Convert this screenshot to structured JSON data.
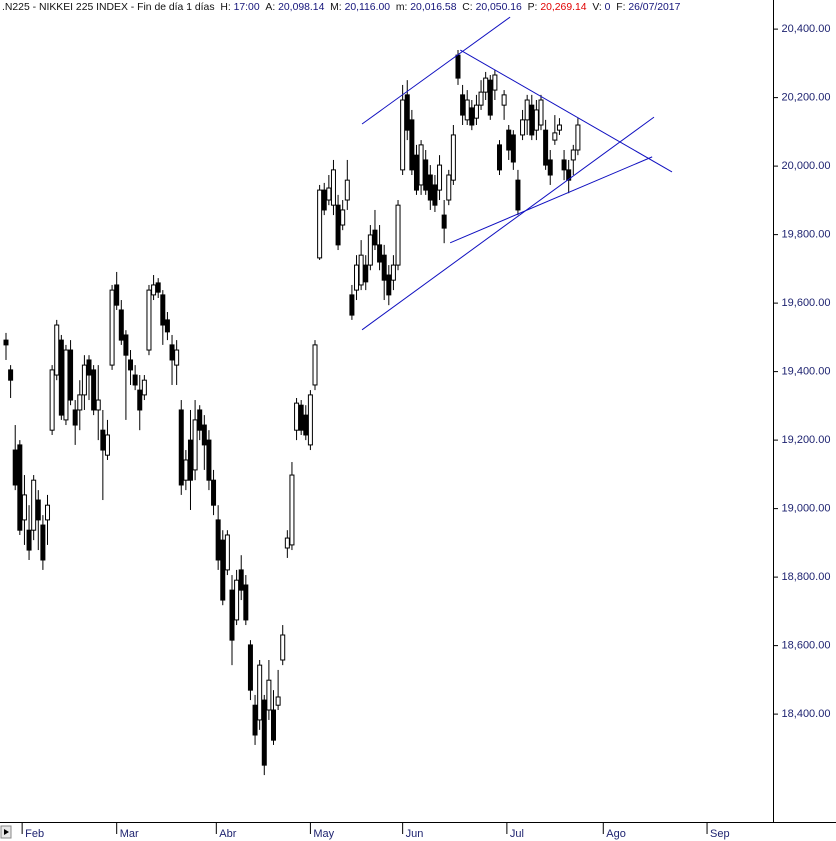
{
  "chart_data": {
    "type": "candlestick",
    "header": {
      "title": ".N225 - NIKKEI 225 INDEX - Fin de día 1 días",
      "fields": [
        {
          "label": "H:",
          "value": "17:00"
        },
        {
          "label": "A:",
          "value": "20,098.14"
        },
        {
          "label": "M:",
          "value": "20,116.00"
        },
        {
          "label": "m:",
          "value": "20,016.58"
        },
        {
          "label": "C:",
          "value": "20,050.16"
        },
        {
          "label": "P:",
          "value": "20,269.14",
          "color": "#e00000"
        },
        {
          "label": "V:",
          "value": "0"
        },
        {
          "label": "F:",
          "value": "26/07/2017"
        }
      ]
    },
    "x": [
      0,
      1,
      2,
      3,
      4,
      5,
      6,
      7,
      8,
      9,
      10,
      11,
      12,
      13,
      14,
      15,
      16,
      17,
      18,
      19,
      20,
      21,
      22,
      23,
      24,
      25,
      26,
      27,
      28,
      29,
      30,
      31,
      32,
      33,
      34,
      35,
      36,
      37,
      38,
      39,
      40,
      41,
      42,
      43,
      44,
      45,
      46,
      47,
      48,
      49,
      50,
      51,
      52,
      53,
      54,
      55,
      56,
      57,
      58,
      59,
      60,
      61,
      62,
      63,
      64,
      65,
      66,
      67,
      68,
      69,
      70,
      71,
      72,
      73,
      74,
      75,
      76,
      77,
      78,
      79,
      80,
      81,
      82,
      83,
      84,
      85,
      86,
      87,
      88,
      89,
      90,
      91,
      92,
      93,
      94,
      95,
      96,
      97,
      98,
      99,
      100,
      101,
      102,
      103,
      104,
      105,
      106,
      107,
      108,
      109,
      110,
      111,
      112,
      113,
      114,
      115,
      116,
      117,
      118,
      119,
      120,
      121,
      122,
      123,
      124
    ],
    "open": [
      19492,
      19405,
      19171,
      19186,
      18967,
      18937,
      18937,
      19025,
      18952,
      18967,
      19229,
      19390,
      19492,
      19259,
      19463,
      19288,
      19288,
      19332,
      19434,
      19405,
      19288,
      19229,
      19156,
      19419,
      19653,
      19580,
      19507,
      19434,
      19390,
      19346,
      19332,
      19463,
      19624,
      19659,
      19624,
      19551,
      19478,
      19419,
      19288,
      19083,
      19200,
      19113,
      19288,
      19244,
      19200,
      19083,
      18967,
      18908,
      18821,
      18762,
      18675,
      18821,
      18777,
      18602,
      18426,
      18383,
      18441,
      18412,
      18412,
      18426,
      18558,
      18885,
      18894,
      19229,
      19302,
      19273,
      19186,
      19361,
      19732,
      19930,
      19901,
      19886,
      19886,
      19828,
      19901,
      19624,
      19638,
      19653,
      19711,
      19711,
      19813,
      19770,
      19740,
      19682,
      19667,
      19711,
      19989,
      20208,
      20135,
      20032,
      19945,
      20018,
      19974,
      19945,
      19930,
      19857,
      19901,
      19959,
      20324,
      20208,
      20135,
      20170,
      20140,
      20178,
      20216,
      20251,
      20222,
      20062,
      20178,
      20105,
      20091,
      19959,
      20091,
      20135,
      20178,
      20105,
      20120,
      20105,
      20018,
      20076,
      20105,
      20018,
      19989,
      20018,
      20047
    ],
    "high": [
      19513,
      19419,
      19244,
      19200,
      19098,
      19010,
      19098,
      19054,
      18981,
      19040,
      19419,
      19551,
      19507,
      19478,
      19492,
      19317,
      19375,
      19448,
      19448,
      19419,
      19419,
      19288,
      19259,
      19653,
      19691,
      19609,
      19521,
      19463,
      19419,
      19390,
      19390,
      19653,
      19682,
      19673,
      19638,
      19574,
      19507,
      19492,
      19317,
      19171,
      19288,
      19317,
      19302,
      19273,
      19229,
      19113,
      19010,
      18937,
      18937,
      18806,
      18821,
      18864,
      18806,
      18616,
      18456,
      18558,
      18456,
      18558,
      18470,
      18529,
      18660,
      18937,
      19136,
      19323,
      19317,
      19302,
      19346,
      19492,
      19945,
      19951,
      19974,
      20018,
      19916,
      19901,
      20018,
      19653,
      19740,
      19784,
      19740,
      19828,
      19872,
      19828,
      19770,
      19711,
      19740,
      19901,
      20237,
      20251,
      20164,
      20062,
      20076,
      20047,
      20003,
      19974,
      20032,
      19901,
      19989,
      20120,
      20339,
      20237,
      20222,
      20193,
      20208,
      20251,
      20275,
      20266,
      20281,
      20076,
      20222,
      20120,
      20105,
      19989,
      20164,
      20208,
      20208,
      20193,
      20208,
      20135,
      20047,
      20149,
      20140,
      20047,
      20018,
      20062,
      20140
    ],
    "low": [
      19434,
      19323,
      19054,
      18923,
      18894,
      18850,
      18908,
      18879,
      18821,
      18894,
      19215,
      19375,
      19259,
      19244,
      19302,
      19186,
      19229,
      19288,
      19317,
      19273,
      19200,
      19025,
      19142,
      19405,
      19580,
      19478,
      19259,
      19361,
      19346,
      19229,
      19317,
      19448,
      19609,
      19615,
      19478,
      19492,
      19361,
      19361,
      19040,
      19054,
      18996,
      19083,
      19200,
      19113,
      19054,
      18981,
      18821,
      18718,
      18806,
      18543,
      18660,
      18733,
      18660,
      18441,
      18310,
      18354,
      18222,
      18383,
      18310,
      18412,
      18543,
      18856,
      18879,
      19200,
      19215,
      19200,
      19171,
      19346,
      19726,
      19857,
      19886,
      19857,
      19755,
      19813,
      19872,
      19551,
      19609,
      19638,
      19638,
      19696,
      19755,
      19696,
      19609,
      19594,
      19638,
      19696,
      19974,
      20076,
      19974,
      19916,
      19916,
      19916,
      19872,
      19866,
      19901,
      19775,
      19886,
      19945,
      20237,
      20120,
      20120,
      20105,
      20120,
      20164,
      20193,
      20135,
      20193,
      19974,
      20135,
      20018,
      19989,
      19857,
      20076,
      20091,
      20076,
      20076,
      20105,
      19989,
      19945,
      20062,
      20091,
      19959,
      19921,
      19974,
      20032
    ],
    "close": [
      19478,
      19375,
      19069,
      18937,
      19040,
      18879,
      19083,
      18967,
      18850,
      19010,
      19405,
      19536,
      19273,
      19463,
      19317,
      19244,
      19332,
      19419,
      19390,
      19288,
      19317,
      19171,
      19215,
      19638,
      19594,
      19492,
      19448,
      19405,
      19361,
      19288,
      19375,
      19638,
      19653,
      19632,
      19536,
      19516,
      19434,
      19463,
      19069,
      19142,
      19083,
      19259,
      19229,
      19186,
      19083,
      19010,
      18850,
      18733,
      18923,
      18616,
      18791,
      18762,
      18675,
      18470,
      18339,
      18543,
      18251,
      18499,
      18324,
      18450,
      18631,
      18914,
      19098,
      19308,
      19229,
      19215,
      19332,
      19478,
      19930,
      19872,
      19936,
      19989,
      19770,
      19872,
      19959,
      19565,
      19711,
      19740,
      19662,
      19799,
      19770,
      19720,
      19667,
      19624,
      19711,
      19886,
      20193,
      20105,
      19989,
      19930,
      20062,
      19930,
      19901,
      19886,
      20003,
      19819,
      19974,
      20091,
      20257,
      20149,
      20193,
      20120,
      20178,
      20216,
      20257,
      20149,
      20266,
      19989,
      20208,
      20047,
      20012,
      19872,
      20135,
      20193,
      20091,
      20164,
      20193,
      20003,
      19974,
      20097,
      20120,
      19989,
      19959,
      20047,
      20120
    ],
    "up_color": "#ffffff",
    "down_color": "#000000",
    "xlim": [
      -1.3,
      166.3
    ],
    "xticks": [
      {
        "value": 3.5,
        "label": "Feb"
      },
      {
        "value": 24,
        "label": "Mar"
      },
      {
        "value": 45.6,
        "label": "Abr"
      },
      {
        "value": 66,
        "label": "May"
      },
      {
        "value": 86,
        "label": "Jun"
      },
      {
        "value": 108.6,
        "label": "Jul"
      },
      {
        "value": 129.5,
        "label": "Ago"
      },
      {
        "value": 152,
        "label": "Sep"
      }
    ],
    "ylim": [
      18085,
      20485
    ],
    "yticks": [
      {
        "value": 18400,
        "label": "18,400.00"
      },
      {
        "value": 18600,
        "label": "18,600.00"
      },
      {
        "value": 18800,
        "label": "18,800.00"
      },
      {
        "value": 19000,
        "label": "19,000.00"
      },
      {
        "value": 19200,
        "label": "19,200.00"
      },
      {
        "value": 19400,
        "label": "19,400.00"
      },
      {
        "value": 19600,
        "label": "19,600.00"
      },
      {
        "value": 19800,
        "label": "19,800.00"
      },
      {
        "value": 20000,
        "label": "20,000.00"
      },
      {
        "value": 20200,
        "label": "20,200.00"
      },
      {
        "value": 20400,
        "label": "20,400.00"
      }
    ],
    "grid": false,
    "lines": [
      {
        "x": [
          77.2,
          109.3
        ],
        "y": [
          20123,
          20435
        ],
        "color": "#1010c0"
      },
      {
        "x": [
          98.5,
          144.4
        ],
        "y": [
          20339,
          19983
        ],
        "color": "#1010c0"
      },
      {
        "x": [
          77.2,
          140.5
        ],
        "y": [
          19522,
          20143
        ],
        "color": "#1010c0"
      },
      {
        "x": [
          96.3,
          140.1
        ],
        "y": [
          19776,
          20027
        ],
        "color": "#1010c0"
      }
    ]
  }
}
